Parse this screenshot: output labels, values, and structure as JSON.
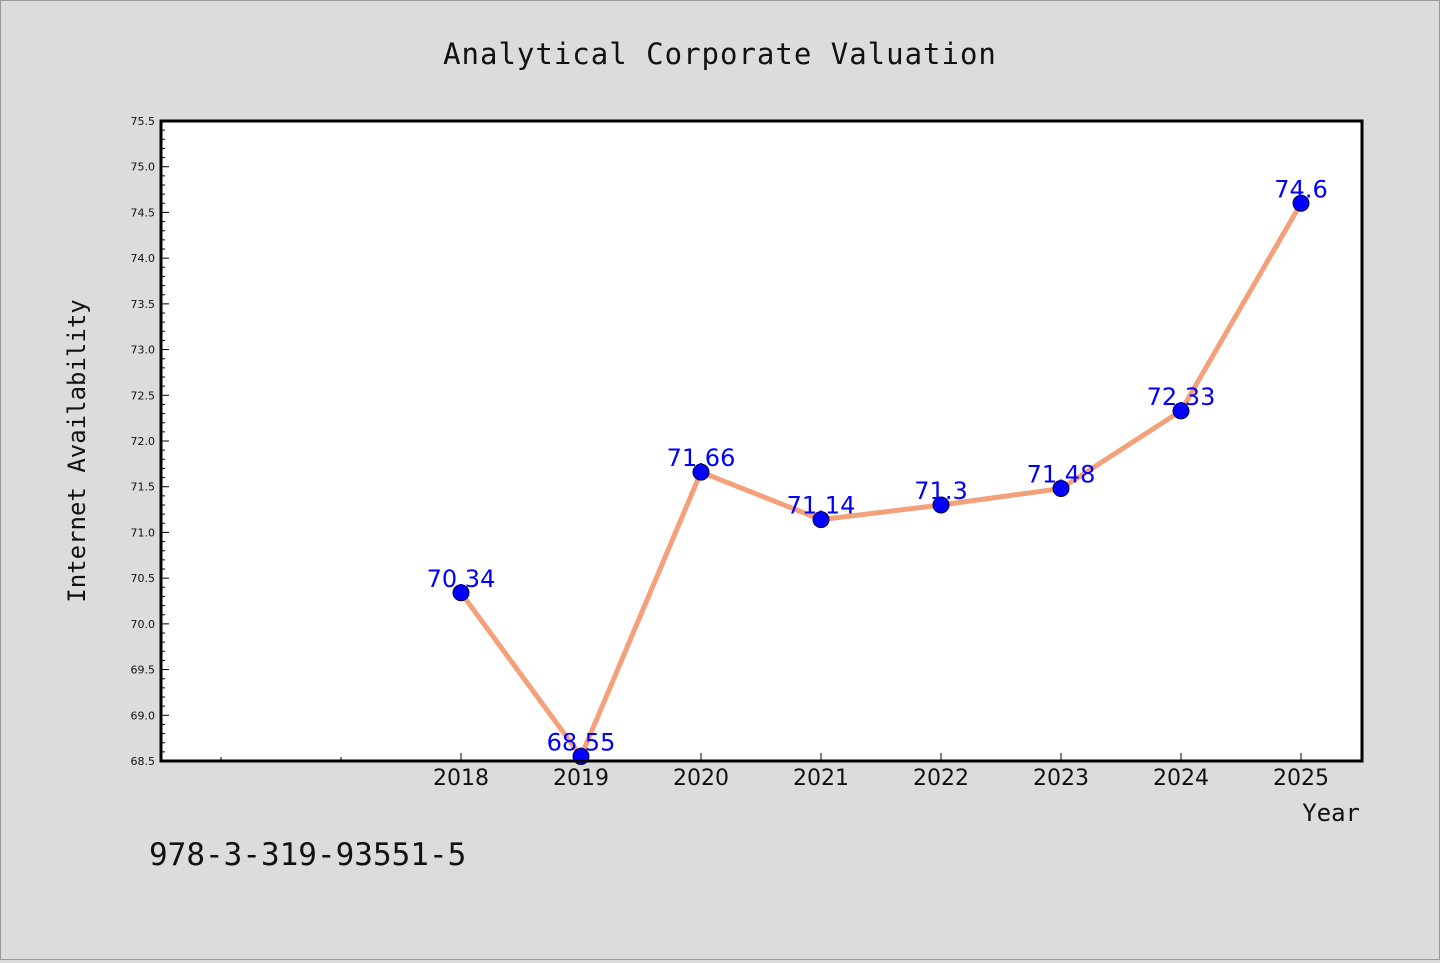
{
  "chart_data": {
    "type": "line",
    "title": "Analytical Corporate Valuation",
    "xlabel": "Year",
    "ylabel": "Internet Availability",
    "categories": [
      "2018",
      "2019",
      "2020",
      "2021",
      "2022",
      "2023",
      "2024",
      "2025"
    ],
    "series": [
      {
        "values": [
          70.34,
          68.55,
          71.66,
          71.14,
          71.3,
          71.48,
          72.33,
          74.6
        ]
      }
    ],
    "data_labels": [
      "70.34",
      "68.55",
      "71.66",
      "71.14",
      "71.3",
      "71.48",
      "72.33",
      "74.6"
    ],
    "ylim": [
      68.5,
      75.5
    ],
    "yticks": [
      "68.5",
      "69.0",
      "69.5",
      "70.0",
      "70.5",
      "71.0",
      "71.5",
      "72.0",
      "72.5",
      "73.0",
      "73.5",
      "74.0",
      "74.5",
      "75.0",
      "75.5"
    ],
    "grid": false,
    "line_color": "#f4a07a",
    "marker_color": "#0000ff",
    "label_color": "#0000ff"
  },
  "footer": {
    "code": "978-3-319-93551-5"
  }
}
